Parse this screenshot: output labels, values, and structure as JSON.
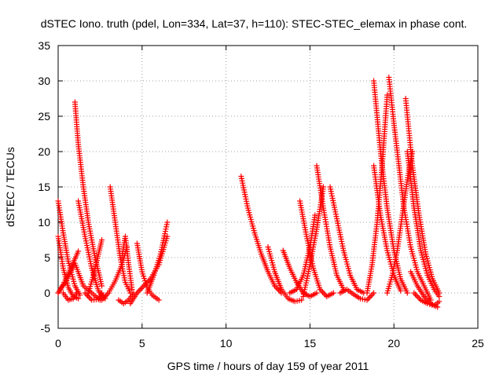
{
  "chart_data": {
    "type": "scatter",
    "title": "dSTEC Iono. truth (pdel, Lon=334, Lat=37, h=110): STEC-STEC_elemax in phase cont.",
    "xlabel": "GPS time / hours of day 159 of year 2011",
    "ylabel": "dSTEC  / TECUs",
    "xlim": [
      0,
      25
    ],
    "ylim": [
      -5,
      35
    ],
    "xticks": [
      0,
      5,
      10,
      15,
      20,
      25
    ],
    "yticks": [
      -5,
      0,
      5,
      10,
      15,
      20,
      25,
      30,
      35
    ],
    "grid": true,
    "marker": "+",
    "color": "#ff0000",
    "series": [
      {
        "x": [
          0.0,
          0.5,
          1.0,
          1.5,
          2.0,
          2.5
        ],
        "y": [
          0.0,
          1.8,
          4.2,
          1.0,
          0.0,
          -1.0
        ]
      },
      {
        "x": [
          0.0,
          0.3,
          0.6,
          1.0,
          1.3
        ],
        "y": [
          13.0,
          8.5,
          4.5,
          1.0,
          -0.3
        ]
      },
      {
        "x": [
          0.0,
          0.3,
          0.6,
          0.9,
          1.2
        ],
        "y": [
          8.0,
          3.5,
          0.8,
          -0.5,
          -0.8
        ]
      },
      {
        "x": [
          0.0,
          0.3,
          0.6,
          0.9,
          1.2
        ],
        "y": [
          0.0,
          1.2,
          2.7,
          4.3,
          5.9
        ]
      },
      {
        "x": [
          0.3,
          0.6,
          0.9,
          1.1
        ],
        "y": [
          0.0,
          -1.0,
          -0.8,
          0.0
        ]
      },
      {
        "x": [
          1.0,
          1.2,
          1.5,
          1.8,
          2.2,
          2.6
        ],
        "y": [
          27.0,
          21.0,
          15.0,
          10.0,
          5.0,
          1.0
        ]
      },
      {
        "x": [
          1.2,
          1.6,
          2.0,
          2.4,
          2.8
        ],
        "y": [
          13.0,
          8.0,
          3.5,
          0.3,
          -0.8
        ]
      },
      {
        "x": [
          1.6,
          2.0,
          2.4,
          2.6
        ],
        "y": [
          0.0,
          -1.0,
          -0.9,
          0.0
        ]
      },
      {
        "x": [
          1.8,
          2.1,
          2.4,
          2.6
        ],
        "y": [
          0.0,
          2.5,
          5.5,
          7.5
        ]
      },
      {
        "x": [
          2.6,
          3.0,
          3.4,
          3.8,
          4.1
        ],
        "y": [
          -1.0,
          0.0,
          1.7,
          4.0,
          6.5
        ]
      },
      {
        "x": [
          3.1,
          3.4,
          3.7,
          4.0,
          4.3
        ],
        "y": [
          15.0,
          10.0,
          5.0,
          1.5,
          0.0
        ]
      },
      {
        "x": [
          3.6,
          3.9,
          4.2,
          4.5
        ],
        "y": [
          -1.0,
          -1.5,
          -1.0,
          0.0
        ]
      },
      {
        "x": [
          3.8,
          4.0,
          4.2,
          4.4
        ],
        "y": [
          5.0,
          8.0,
          4.0,
          0.5
        ]
      },
      {
        "x": [
          4.3,
          4.7,
          5.1,
          5.5,
          6.0,
          6.5
        ],
        "y": [
          -1.5,
          0.0,
          1.0,
          2.0,
          4.0,
          8.0
        ]
      },
      {
        "x": [
          4.7,
          5.0,
          5.3,
          5.6,
          6.0
        ],
        "y": [
          7.0,
          3.0,
          0.8,
          -0.3,
          -1.0
        ]
      },
      {
        "x": [
          5.3,
          5.7,
          6.1,
          6.5
        ],
        "y": [
          0.0,
          2.5,
          5.5,
          10.0
        ]
      },
      {
        "x": [
          10.9,
          11.3,
          11.7,
          12.1,
          12.5,
          12.9,
          13.3
        ],
        "y": [
          16.5,
          12.0,
          8.5,
          5.5,
          3.0,
          1.0,
          0.0
        ]
      },
      {
        "x": [
          12.5,
          12.9,
          13.3,
          13.7,
          14.1,
          14.5
        ],
        "y": [
          6.5,
          3.0,
          0.5,
          -0.8,
          -1.2,
          -1.0
        ]
      },
      {
        "x": [
          13.4,
          13.8,
          14.2,
          14.6,
          15.0,
          15.4
        ],
        "y": [
          6.0,
          3.5,
          1.5,
          0.0,
          -0.5,
          0.0
        ]
      },
      {
        "x": [
          13.8,
          14.2,
          14.6,
          15.0,
          15.3
        ],
        "y": [
          0.0,
          0.5,
          2.5,
          6.5,
          11.0
        ]
      },
      {
        "x": [
          14.4,
          14.8,
          15.2,
          15.6,
          16.0,
          16.4
        ],
        "y": [
          13.0,
          8.0,
          3.5,
          0.5,
          -0.5,
          0.0
        ]
      },
      {
        "x": [
          14.6,
          15.0,
          15.4,
          15.8
        ],
        "y": [
          -0.5,
          4.0,
          9.0,
          15.0
        ]
      },
      {
        "x": [
          15.4,
          15.8,
          16.2,
          16.6,
          17.0
        ],
        "y": [
          18.0,
          12.0,
          6.5,
          2.5,
          0.5
        ]
      },
      {
        "x": [
          16.2,
          16.6,
          17.0,
          17.4,
          17.8,
          18.2
        ],
        "y": [
          15.0,
          10.5,
          6.0,
          2.5,
          0.5,
          0.0
        ]
      },
      {
        "x": [
          16.8,
          17.2,
          17.6,
          18.0,
          18.4,
          18.8
        ],
        "y": [
          0.0,
          0.5,
          -0.2,
          -0.8,
          -1.0,
          0.0
        ]
      },
      {
        "x": [
          18.4,
          18.7,
          19.0,
          19.3,
          19.6
        ],
        "y": [
          0.0,
          4.0,
          10.0,
          18.0,
          28.0
        ]
      },
      {
        "x": [
          18.8,
          19.2,
          19.6,
          20.0,
          20.4,
          20.8
        ],
        "y": [
          30.0,
          20.0,
          12.0,
          6.0,
          2.0,
          0.0
        ]
      },
      {
        "x": [
          18.8,
          19.2,
          19.6,
          20.0,
          20.4
        ],
        "y": [
          18.0,
          11.0,
          6.0,
          2.5,
          0.3
        ]
      },
      {
        "x": [
          19.7,
          20.0,
          20.3,
          20.6,
          21.0,
          21.4,
          21.8,
          22.2
        ],
        "y": [
          30.5,
          24.0,
          18.0,
          12.0,
          6.5,
          3.0,
          1.0,
          -1.0
        ]
      },
      {
        "x": [
          19.6,
          19.9,
          20.2,
          20.5,
          20.8,
          21.1
        ],
        "y": [
          0.0,
          2.5,
          6.0,
          11.0,
          16.0,
          20.0
        ]
      },
      {
        "x": [
          20.7,
          21.1,
          21.5,
          21.9,
          22.3,
          22.7
        ],
        "y": [
          27.5,
          18.0,
          11.0,
          5.5,
          2.0,
          0.0
        ]
      },
      {
        "x": [
          20.8,
          21.2,
          21.6,
          22.0,
          22.4,
          22.7
        ],
        "y": [
          20.0,
          12.0,
          6.0,
          2.5,
          0.5,
          -0.5
        ]
      },
      {
        "x": [
          21.0,
          21.4,
          21.8,
          22.2,
          22.6
        ],
        "y": [
          3.0,
          1.0,
          -0.5,
          -1.5,
          -2.0
        ]
      },
      {
        "x": [
          21.2,
          21.6,
          22.0,
          22.4,
          22.7
        ],
        "y": [
          0.0,
          -1.0,
          -1.5,
          -1.8,
          -1.2
        ]
      }
    ]
  }
}
